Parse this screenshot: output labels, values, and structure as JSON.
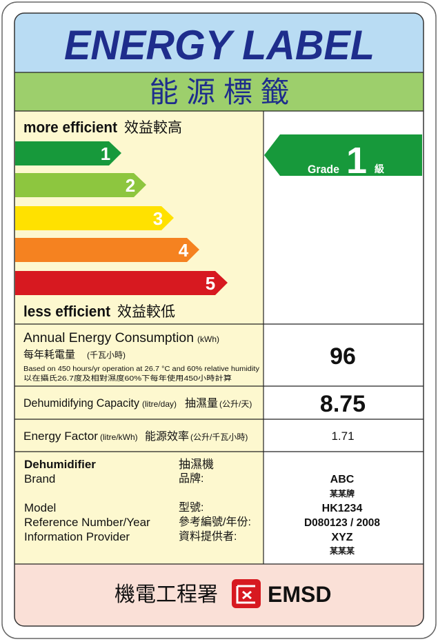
{
  "header": {
    "title": "ENERGY LABEL",
    "title_zh": "能 源 標 籤"
  },
  "scale": {
    "top": "more efficient",
    "top_zh": "效益較高",
    "grades": [
      "1",
      "2",
      "3",
      "4",
      "5"
    ],
    "bottom": "less efficient",
    "bottom_zh": "效益較低"
  },
  "grade": {
    "label": "Grade",
    "value": "1",
    "unit": "級"
  },
  "consumption": {
    "label": "Annual Energy Consumption",
    "unit": "(kWh)",
    "label_zh": "每年耗電量",
    "unit_zh": "(千瓦小時)",
    "note": "Based on 450 hours/yr operation at 26.7 °C and 60% relative humidity",
    "note_zh": "以在攝氏26.7度及相對濕度60%下每年使用450小時計算",
    "value": 96
  },
  "capacity": {
    "label": "Dehumidifying Capacity",
    "unit": "(litre/day)",
    "label_zh": "抽濕量",
    "unit_zh": "(公升/天)",
    "value": 8.75
  },
  "factor": {
    "label": "Energy Factor",
    "unit": "(litre/kWh)",
    "label_zh": "能源效率",
    "unit_zh": "(公升/千瓦小時)",
    "value": 1.71
  },
  "info": {
    "product": "Dehumidifier",
    "product_zh": "抽濕機",
    "labels": [
      "Brand",
      "Model",
      "Reference Number/Year",
      "Information Provider"
    ],
    "labels_zh": [
      "品牌:",
      "型號:",
      "參考編號/年份:",
      "資料提供者:"
    ],
    "values": [
      "ABC",
      "某某牌",
      "HK1234",
      "D080123 / 2008",
      "XYZ",
      "某某某"
    ]
  },
  "footer": {
    "agency_zh": "機電工程署",
    "agency": "EMSD"
  }
}
